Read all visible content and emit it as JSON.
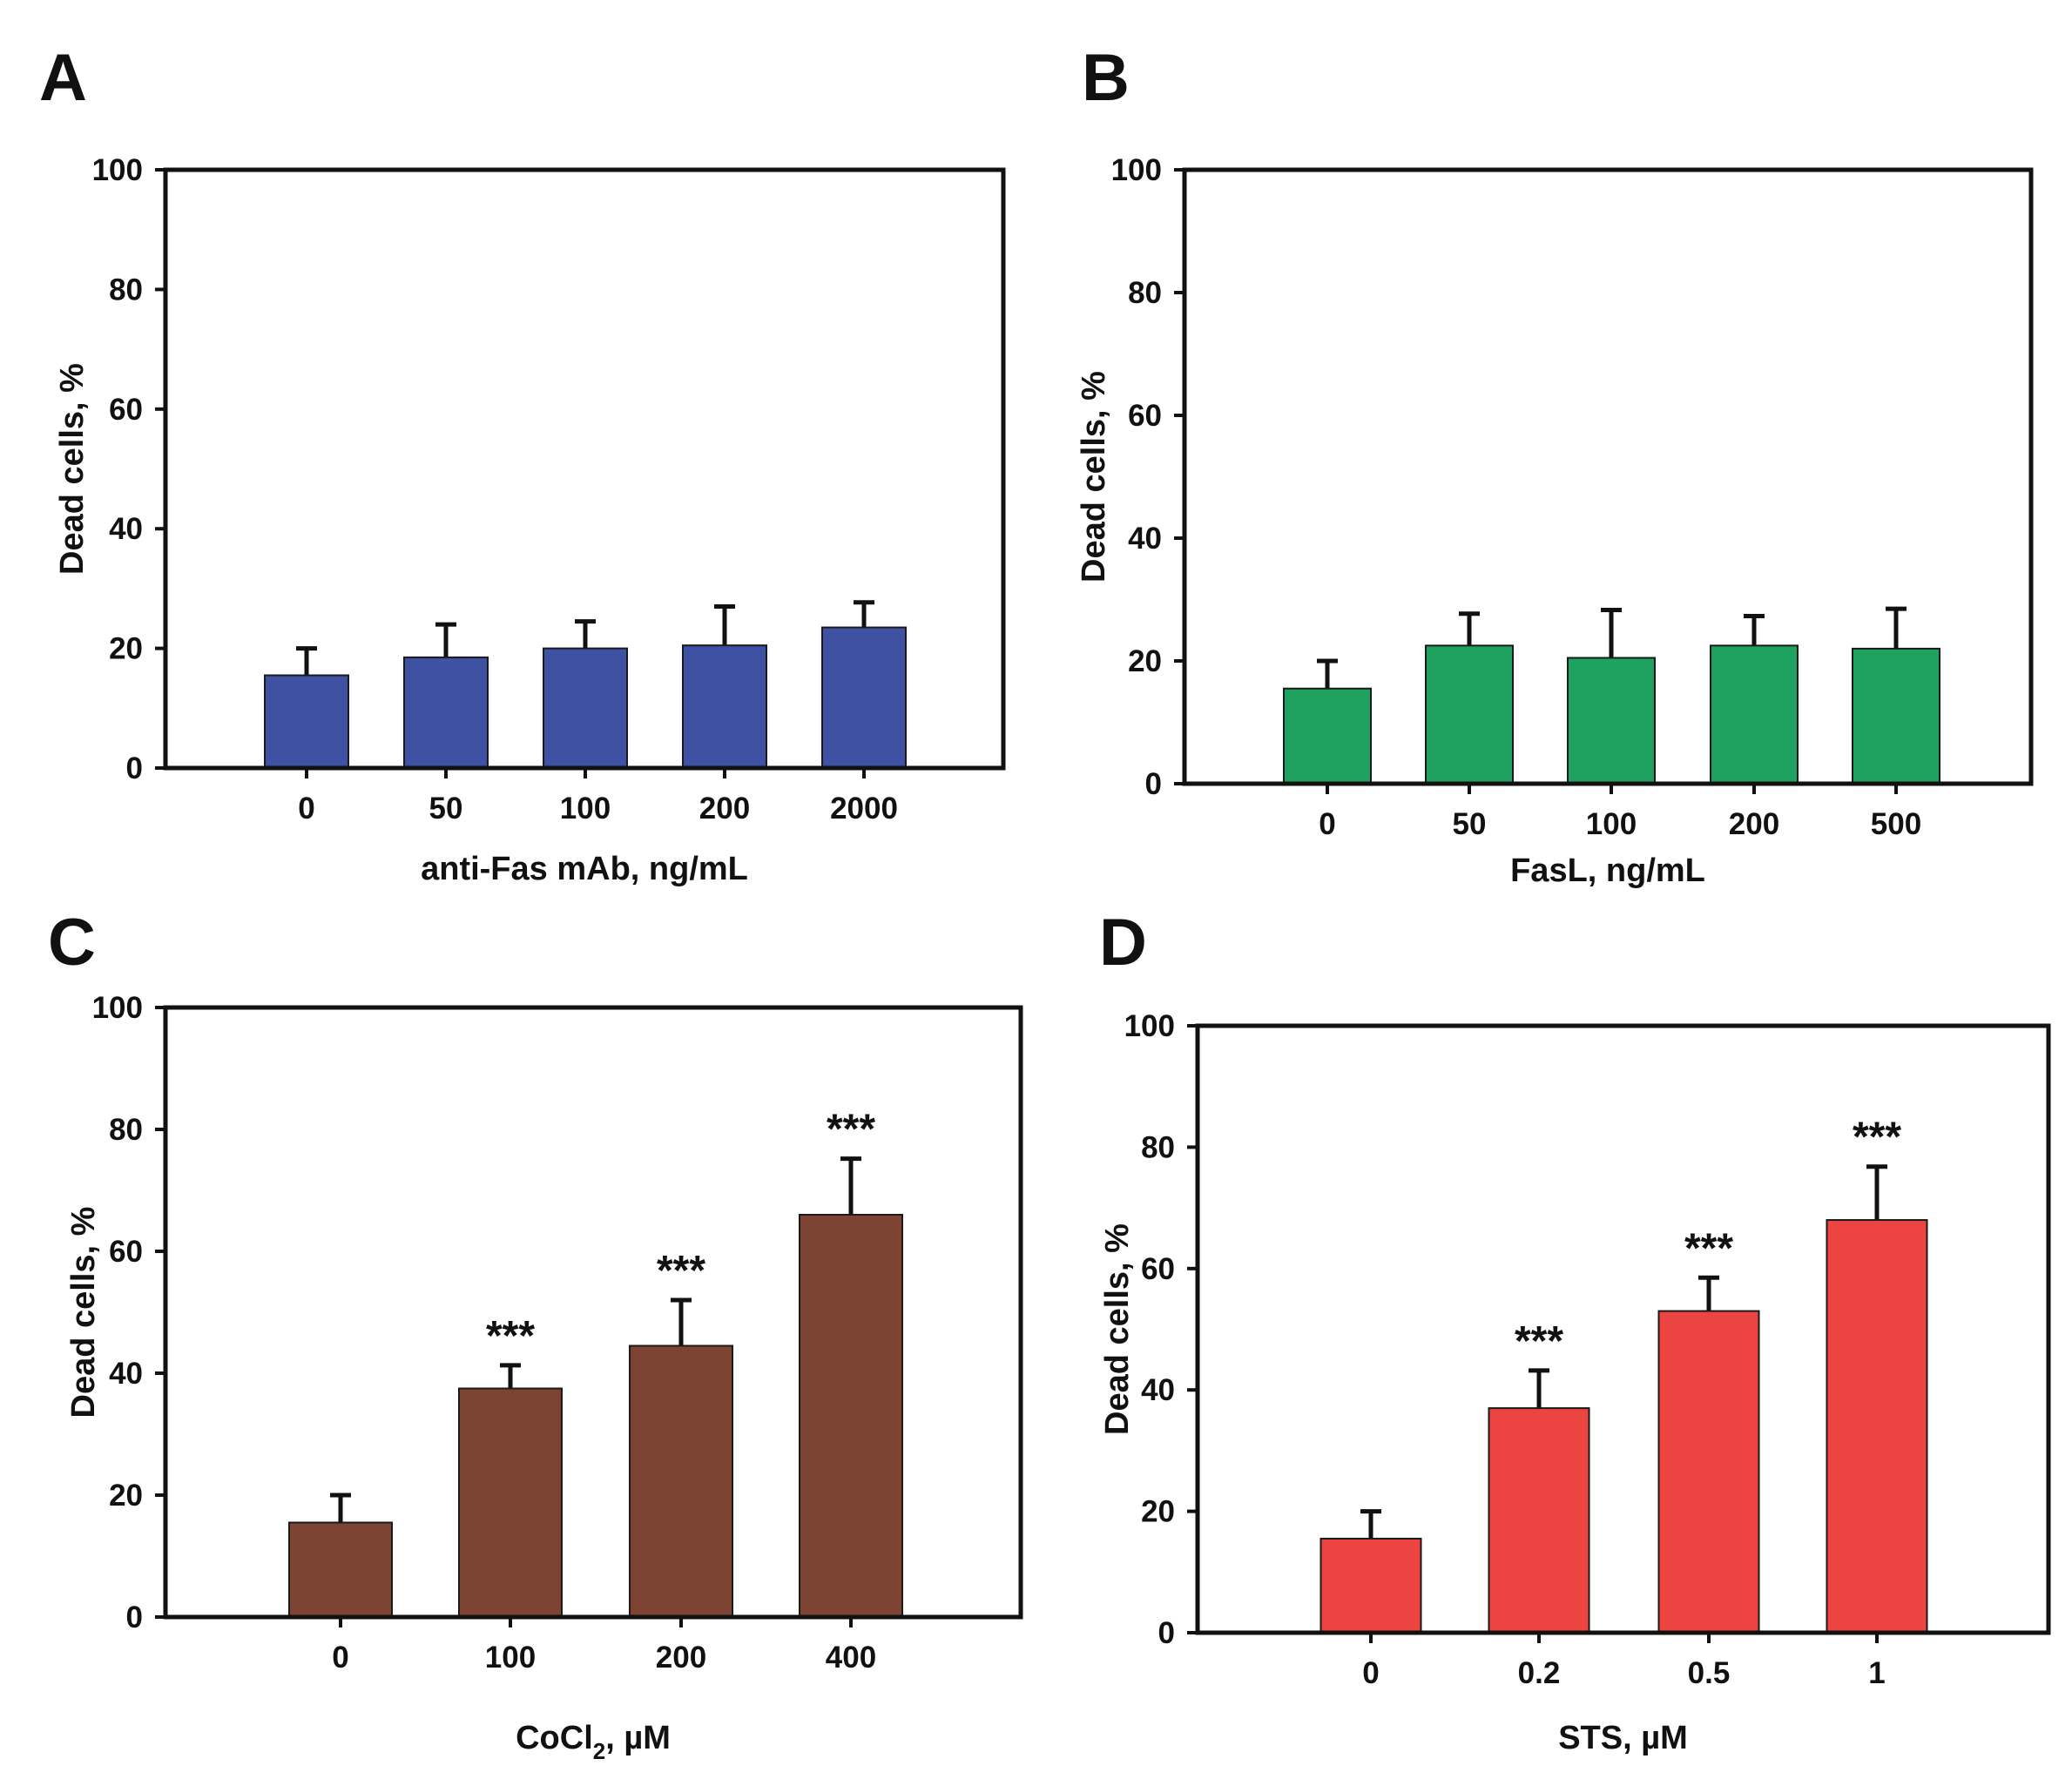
{
  "figure": {
    "description_labels": [
      "A",
      "B",
      "C",
      "D"
    ]
  },
  "chart_data": [
    {
      "panel": "A",
      "type": "bar",
      "color": "#3E51A3",
      "categories": [
        "0",
        "50",
        "100",
        "200",
        "2000"
      ],
      "values": [
        15.5,
        18.5,
        20,
        20.5,
        23.5
      ],
      "errors": [
        4.5,
        5.5,
        4.5,
        6.5,
        4.2
      ],
      "significance": [
        "",
        "",
        "",
        "",
        ""
      ],
      "title": "",
      "xlabel": "anti-Fas mAb, ng/mL",
      "ylabel": "Dead cells, %",
      "ylim": [
        0,
        100
      ],
      "yticks": [
        "0",
        "20",
        "40",
        "60",
        "80",
        "100"
      ]
    },
    {
      "panel": "B",
      "type": "bar",
      "color": "#1FA160",
      "categories": [
        "0",
        "50",
        "100",
        "200",
        "500"
      ],
      "values": [
        15.5,
        22.5,
        20.5,
        22.5,
        22
      ],
      "errors": [
        4.5,
        5.2,
        7.8,
        4.8,
        6.5
      ],
      "significance": [
        "",
        "",
        "",
        "",
        ""
      ],
      "title": "",
      "xlabel": "FasL, ng/mL",
      "ylabel": "Dead cells, %",
      "ylim": [
        0,
        100
      ],
      "yticks": [
        "0",
        "20",
        "40",
        "60",
        "80",
        "100"
      ]
    },
    {
      "panel": "C",
      "type": "bar",
      "color": "#7D4433",
      "categories": [
        "0",
        "100",
        "200",
        "400"
      ],
      "values": [
        15.5,
        37.5,
        44.5,
        66
      ],
      "errors": [
        4.5,
        3.8,
        7.5,
        9.2
      ],
      "significance": [
        "",
        "***",
        "***",
        "***"
      ],
      "title": "",
      "xlabel": "CoCl",
      "xlabel_subscript": "2",
      "xlabel_suffix": ",  µM",
      "ylabel": "Dead cells, %",
      "ylim": [
        0,
        100
      ],
      "yticks": [
        "0",
        "20",
        "40",
        "60",
        "80",
        "100"
      ]
    },
    {
      "panel": "D",
      "type": "bar",
      "color": "#EC4541",
      "categories": [
        "0",
        "0.2",
        "0.5",
        "1"
      ],
      "values": [
        15.5,
        37,
        53,
        68
      ],
      "errors": [
        4.5,
        6.2,
        5.5,
        8.8
      ],
      "significance": [
        "",
        "***",
        "***",
        "***"
      ],
      "title": "",
      "xlabel": "STS,  µM",
      "ylabel": "Dead cells, %",
      "ylim": [
        0,
        100
      ],
      "yticks": [
        "0",
        "20",
        "40",
        "60",
        "80",
        "100"
      ]
    }
  ]
}
